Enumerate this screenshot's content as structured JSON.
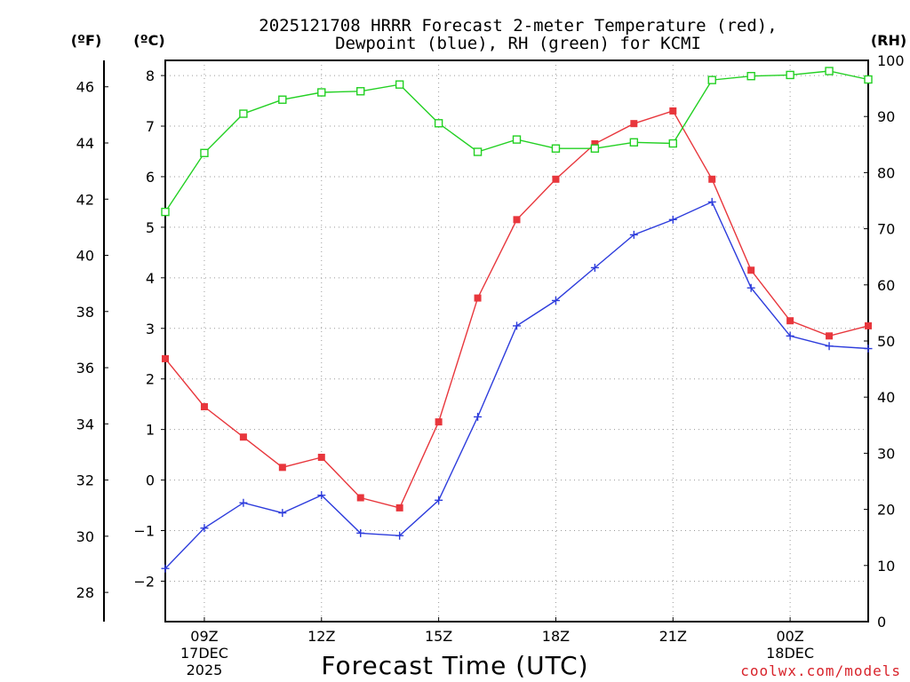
{
  "chart_data": {
    "type": "line",
    "title_line1": "2025121708 HRRR Forecast 2-meter Temperature (red),",
    "title_line2": "Dewpoint (blue), RH (green) for KCMI",
    "xlabel": "Forecast Time (UTC)",
    "credit": "coolwx.com/models",
    "units": {
      "fahrenheit": "(ºF)",
      "celsius": "(ºC)",
      "rh": "(RH)"
    },
    "x_hours": [
      8,
      9,
      10,
      11,
      12,
      13,
      14,
      15,
      16,
      17,
      18,
      19,
      20,
      21,
      22,
      23,
      24,
      25,
      26
    ],
    "x_ticks": [
      {
        "hour": 9,
        "lines": [
          "09Z",
          "17DEC",
          "2025"
        ]
      },
      {
        "hour": 12,
        "lines": [
          "12Z"
        ]
      },
      {
        "hour": 15,
        "lines": [
          "15Z"
        ]
      },
      {
        "hour": 18,
        "lines": [
          "18Z"
        ]
      },
      {
        "hour": 21,
        "lines": [
          "21Z"
        ]
      },
      {
        "hour": 24,
        "lines": [
          "00Z",
          "18DEC"
        ]
      }
    ],
    "xlim": [
      8,
      26
    ],
    "celsius_axis": {
      "ylim": [
        -2.8,
        8.3
      ],
      "ticks": [
        -2,
        -1,
        0,
        1,
        2,
        3,
        4,
        5,
        6,
        7,
        8
      ]
    },
    "fahrenheit_axis": {
      "ticks": [
        28,
        30,
        32,
        34,
        36,
        38,
        40,
        42,
        44,
        46
      ]
    },
    "rh_axis": {
      "ylim": [
        0,
        100
      ],
      "ticks": [
        0,
        10,
        20,
        30,
        40,
        50,
        60,
        70,
        80,
        90,
        100
      ]
    },
    "series": [
      {
        "name": "2-meter Temperature",
        "axis": "celsius",
        "color": "#e8363c",
        "marker": "filled-square",
        "values": [
          2.4,
          1.45,
          0.85,
          0.25,
          0.45,
          -0.35,
          -0.55,
          1.15,
          3.6,
          5.15,
          5.95,
          6.65,
          7.05,
          7.3,
          5.95,
          4.15,
          3.15,
          2.85,
          3.05
        ]
      },
      {
        "name": "Dewpoint",
        "axis": "celsius",
        "color": "#2d3cdc",
        "marker": "plus",
        "values": [
          -1.75,
          -0.95,
          -0.45,
          -0.65,
          -0.3,
          -1.05,
          -1.1,
          -0.4,
          1.25,
          3.05,
          3.55,
          4.2,
          4.85,
          5.15,
          5.5,
          3.8,
          2.85,
          2.65,
          2.6
        ]
      },
      {
        "name": "RH",
        "axis": "rh",
        "color": "#22d022",
        "marker": "open-square",
        "values": [
          73,
          83.5,
          90.5,
          93,
          94.3,
          94.5,
          95.7,
          88.8,
          83.7,
          85.9,
          84.3,
          84.3,
          85.4,
          85.2,
          96.5,
          97.2,
          97.4,
          98.1,
          96.6
        ]
      }
    ]
  }
}
